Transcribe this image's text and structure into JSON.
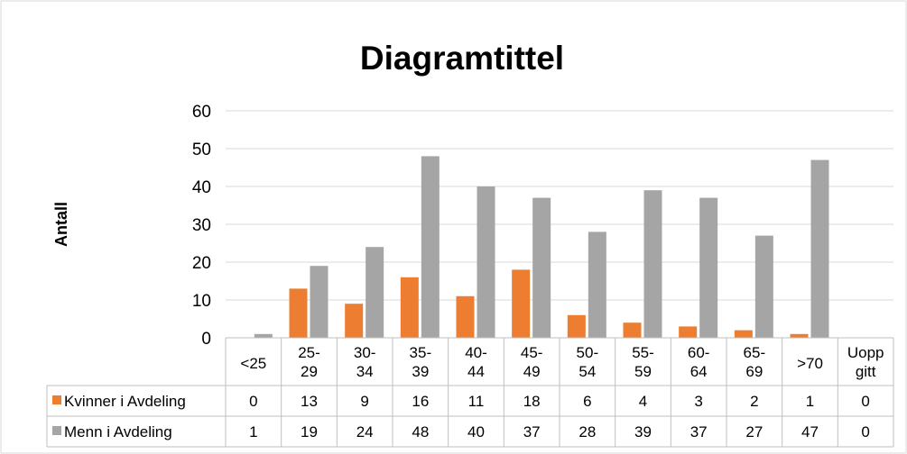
{
  "chart_data": {
    "type": "bar",
    "title": "Diagramtittel",
    "xlabel": "",
    "ylabel": "Antall",
    "ylim": [
      0,
      60
    ],
    "yticks": [
      "0",
      "10",
      "20",
      "30",
      "40",
      "50",
      "60"
    ],
    "grid": true,
    "legend": "data-table",
    "categories": [
      [
        "<25"
      ],
      [
        "25-",
        "29"
      ],
      [
        "30-",
        "34"
      ],
      [
        "35-",
        "39"
      ],
      [
        "40-",
        "44"
      ],
      [
        "45-",
        "49"
      ],
      [
        "50-",
        "54"
      ],
      [
        "55-",
        "59"
      ],
      [
        "60-",
        "64"
      ],
      [
        "65-",
        "69"
      ],
      [
        ">70"
      ],
      [
        "Uopp",
        "gitt"
      ]
    ],
    "series": [
      {
        "name": "Kvinner i Avdeling",
        "color": "#ED7D31",
        "values": [
          0,
          13,
          9,
          16,
          11,
          18,
          6,
          4,
          3,
          2,
          1,
          0
        ]
      },
      {
        "name": "Menn i Avdeling",
        "color": "#A5A5A5",
        "values": [
          1,
          19,
          24,
          48,
          40,
          37,
          28,
          39,
          37,
          27,
          47,
          0
        ]
      }
    ]
  }
}
